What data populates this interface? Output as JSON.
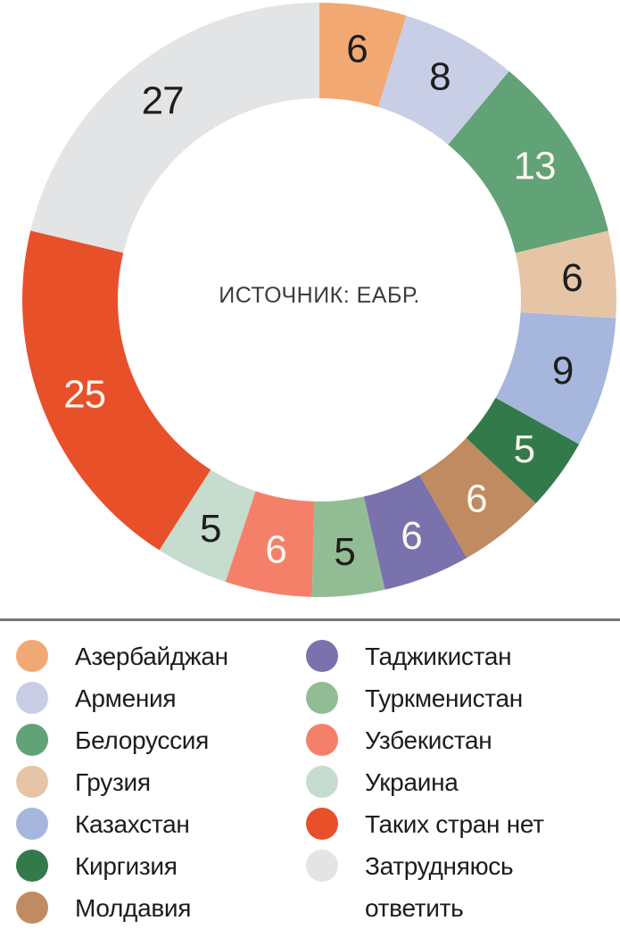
{
  "chart_data": {
    "type": "pie",
    "variant": "donut",
    "title": "",
    "center_label": "ИСТОЧНИК: ЕАБР.",
    "total": 127,
    "start_angle_deg": 0,
    "direction": "clockwise",
    "legend_position": "bottom",
    "label_dark_color": "#1E1E1E",
    "label_light_color": "#FAF7EF",
    "segments": [
      {
        "label": "Азербайджан",
        "value": 6,
        "color": "#F2A873",
        "label_color": "#1E1E1E"
      },
      {
        "label": "Армения",
        "value": 8,
        "color": "#C9CEE7",
        "label_color": "#1E1E1E"
      },
      {
        "label": "Белоруссия",
        "value": 13,
        "color": "#61A276",
        "label_color": "#FAF7EF"
      },
      {
        "label": "Грузия",
        "value": 6,
        "color": "#E6C5A7",
        "label_color": "#1E1E1E"
      },
      {
        "label": "Казахстан",
        "value": 9,
        "color": "#A6B6DD",
        "label_color": "#1E1E1E"
      },
      {
        "label": "Киргизия",
        "value": 5,
        "color": "#337A4B",
        "label_color": "#FAF7EF"
      },
      {
        "label": "Молдавия",
        "value": 6,
        "color": "#C08B61",
        "label_color": "#FAF7EF"
      },
      {
        "label": "Таджикистан",
        "value": 6,
        "color": "#7A72AD",
        "label_color": "#FAF7EF"
      },
      {
        "label": "Туркменистан",
        "value": 5,
        "color": "#92BD94",
        "label_color": "#1E1E1E"
      },
      {
        "label": "Узбекистан",
        "value": 6,
        "color": "#F58069",
        "label_color": "#FAF7EF"
      },
      {
        "label": "Украина",
        "value": 5,
        "color": "#C5DCCE",
        "label_color": "#1E1E1E"
      },
      {
        "label": "Таких стран нет",
        "value": 25,
        "color": "#E8502A",
        "label_color": "#FAF7EF"
      },
      {
        "label": "Затрудняюсь ответить",
        "value": 27,
        "color": "#E2E4E5",
        "label_color": "#1E1E1E"
      }
    ]
  },
  "legend": {
    "columns": [
      {
        "segment_indexes": [
          0,
          1,
          2,
          3,
          4,
          5,
          6
        ]
      },
      {
        "segment_indexes": [
          7,
          8,
          9,
          10,
          11,
          12
        ]
      }
    ],
    "wrap_labels": {
      "12": "Затрудняюсь\nответить"
    }
  }
}
